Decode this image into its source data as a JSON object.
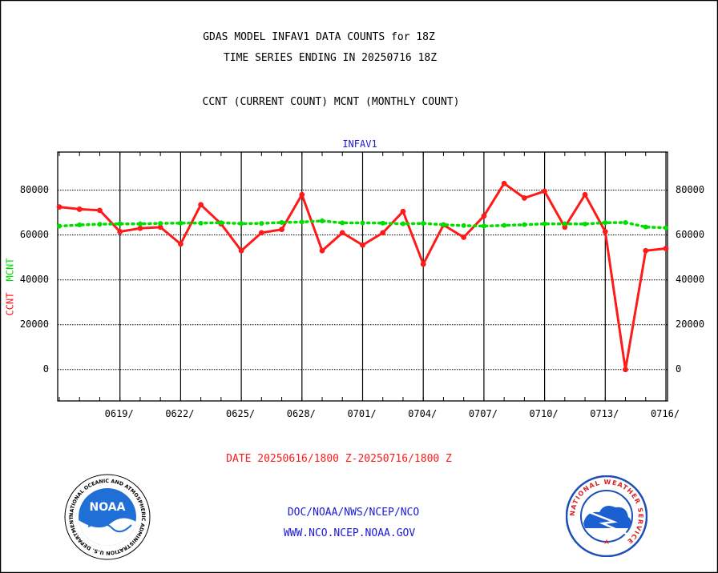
{
  "header": {
    "line1": "GDAS MODEL INFAV1 DATA COUNTS for 18Z",
    "line2": "TIME SERIES ENDING IN 20250716 18Z",
    "line3": "CCNT (CURRENT COUNT) MCNT (MONTHLY COUNT)"
  },
  "footer": {
    "date_range": "DATE 20250616/1800 Z-20250716/1800 Z",
    "org": "DOC/NOAA/NWS/NCEP/NCO",
    "url": "WWW.NCO.NCEP.NOAA.GOV"
  },
  "logos": {
    "noaa": "NOAA",
    "noaa_ring": "NATIONAL OCEANIC AND ATMOSPHERIC ADMINISTRATION U.S. DEPARTMENT OF COMMERCE",
    "nws_ring": "NATIONAL WEATHER SERVICE"
  },
  "colors": {
    "ccnt": "#ff1a1a",
    "mcnt": "#00dd00",
    "title": "#1a1ad6",
    "grid": "#000000"
  },
  "chart_data": {
    "type": "line",
    "title": "INFAV1",
    "ylabel_left_ccnt": "CCNT",
    "ylabel_left_mcnt": "MCNT",
    "ylim": [
      -14000,
      97000
    ],
    "yticks": [
      0,
      20000,
      40000,
      60000,
      80000
    ],
    "ytick_labels": [
      "0",
      "20000",
      "40000",
      "60000",
      "80000"
    ],
    "x": [
      "20250616",
      "20250617",
      "20250618",
      "20250619",
      "20250620",
      "20250621",
      "20250622",
      "20250623",
      "20250624",
      "20250625",
      "20250626",
      "20250627",
      "20250628",
      "20250629",
      "20250630",
      "20250701",
      "20250702",
      "20250703",
      "20250704",
      "20250705",
      "20250706",
      "20250707",
      "20250708",
      "20250709",
      "20250710",
      "20250711",
      "20250712",
      "20250713",
      "20250714",
      "20250715",
      "20250716"
    ],
    "xlim": [
      "20250616",
      "20250716"
    ],
    "xtick_dates": [
      "20250619",
      "20250622",
      "20250625",
      "20250628",
      "20250701",
      "20250704",
      "20250707",
      "20250710",
      "20250713",
      "20250716"
    ],
    "xtick_labels": [
      "0619/",
      "0622/",
      "0625/",
      "0628/",
      "0701/",
      "0704/",
      "0707/",
      "0710/",
      "0713/",
      "0716/"
    ],
    "grid": true,
    "series": [
      {
        "name": "CCNT",
        "values": [
          72500,
          71500,
          71000,
          61500,
          63000,
          63500,
          56000,
          73500,
          65000,
          53000,
          61000,
          62500,
          78000,
          53000,
          61000,
          55500,
          61000,
          70500,
          47000,
          64500,
          59000,
          68500,
          83000,
          76500,
          79500,
          63500,
          78000,
          61500,
          0,
          53000,
          54000
        ]
      },
      {
        "name": "MCNT",
        "values": [
          64000,
          64500,
          64800,
          65000,
          65000,
          65200,
          65300,
          65300,
          65500,
          65100,
          65200,
          65600,
          65800,
          66300,
          65400,
          65400,
          65300,
          65000,
          65200,
          64600,
          64200,
          64000,
          64300,
          64600,
          65000,
          65000,
          64900,
          65500,
          65600,
          63600,
          63200
        ]
      }
    ]
  }
}
